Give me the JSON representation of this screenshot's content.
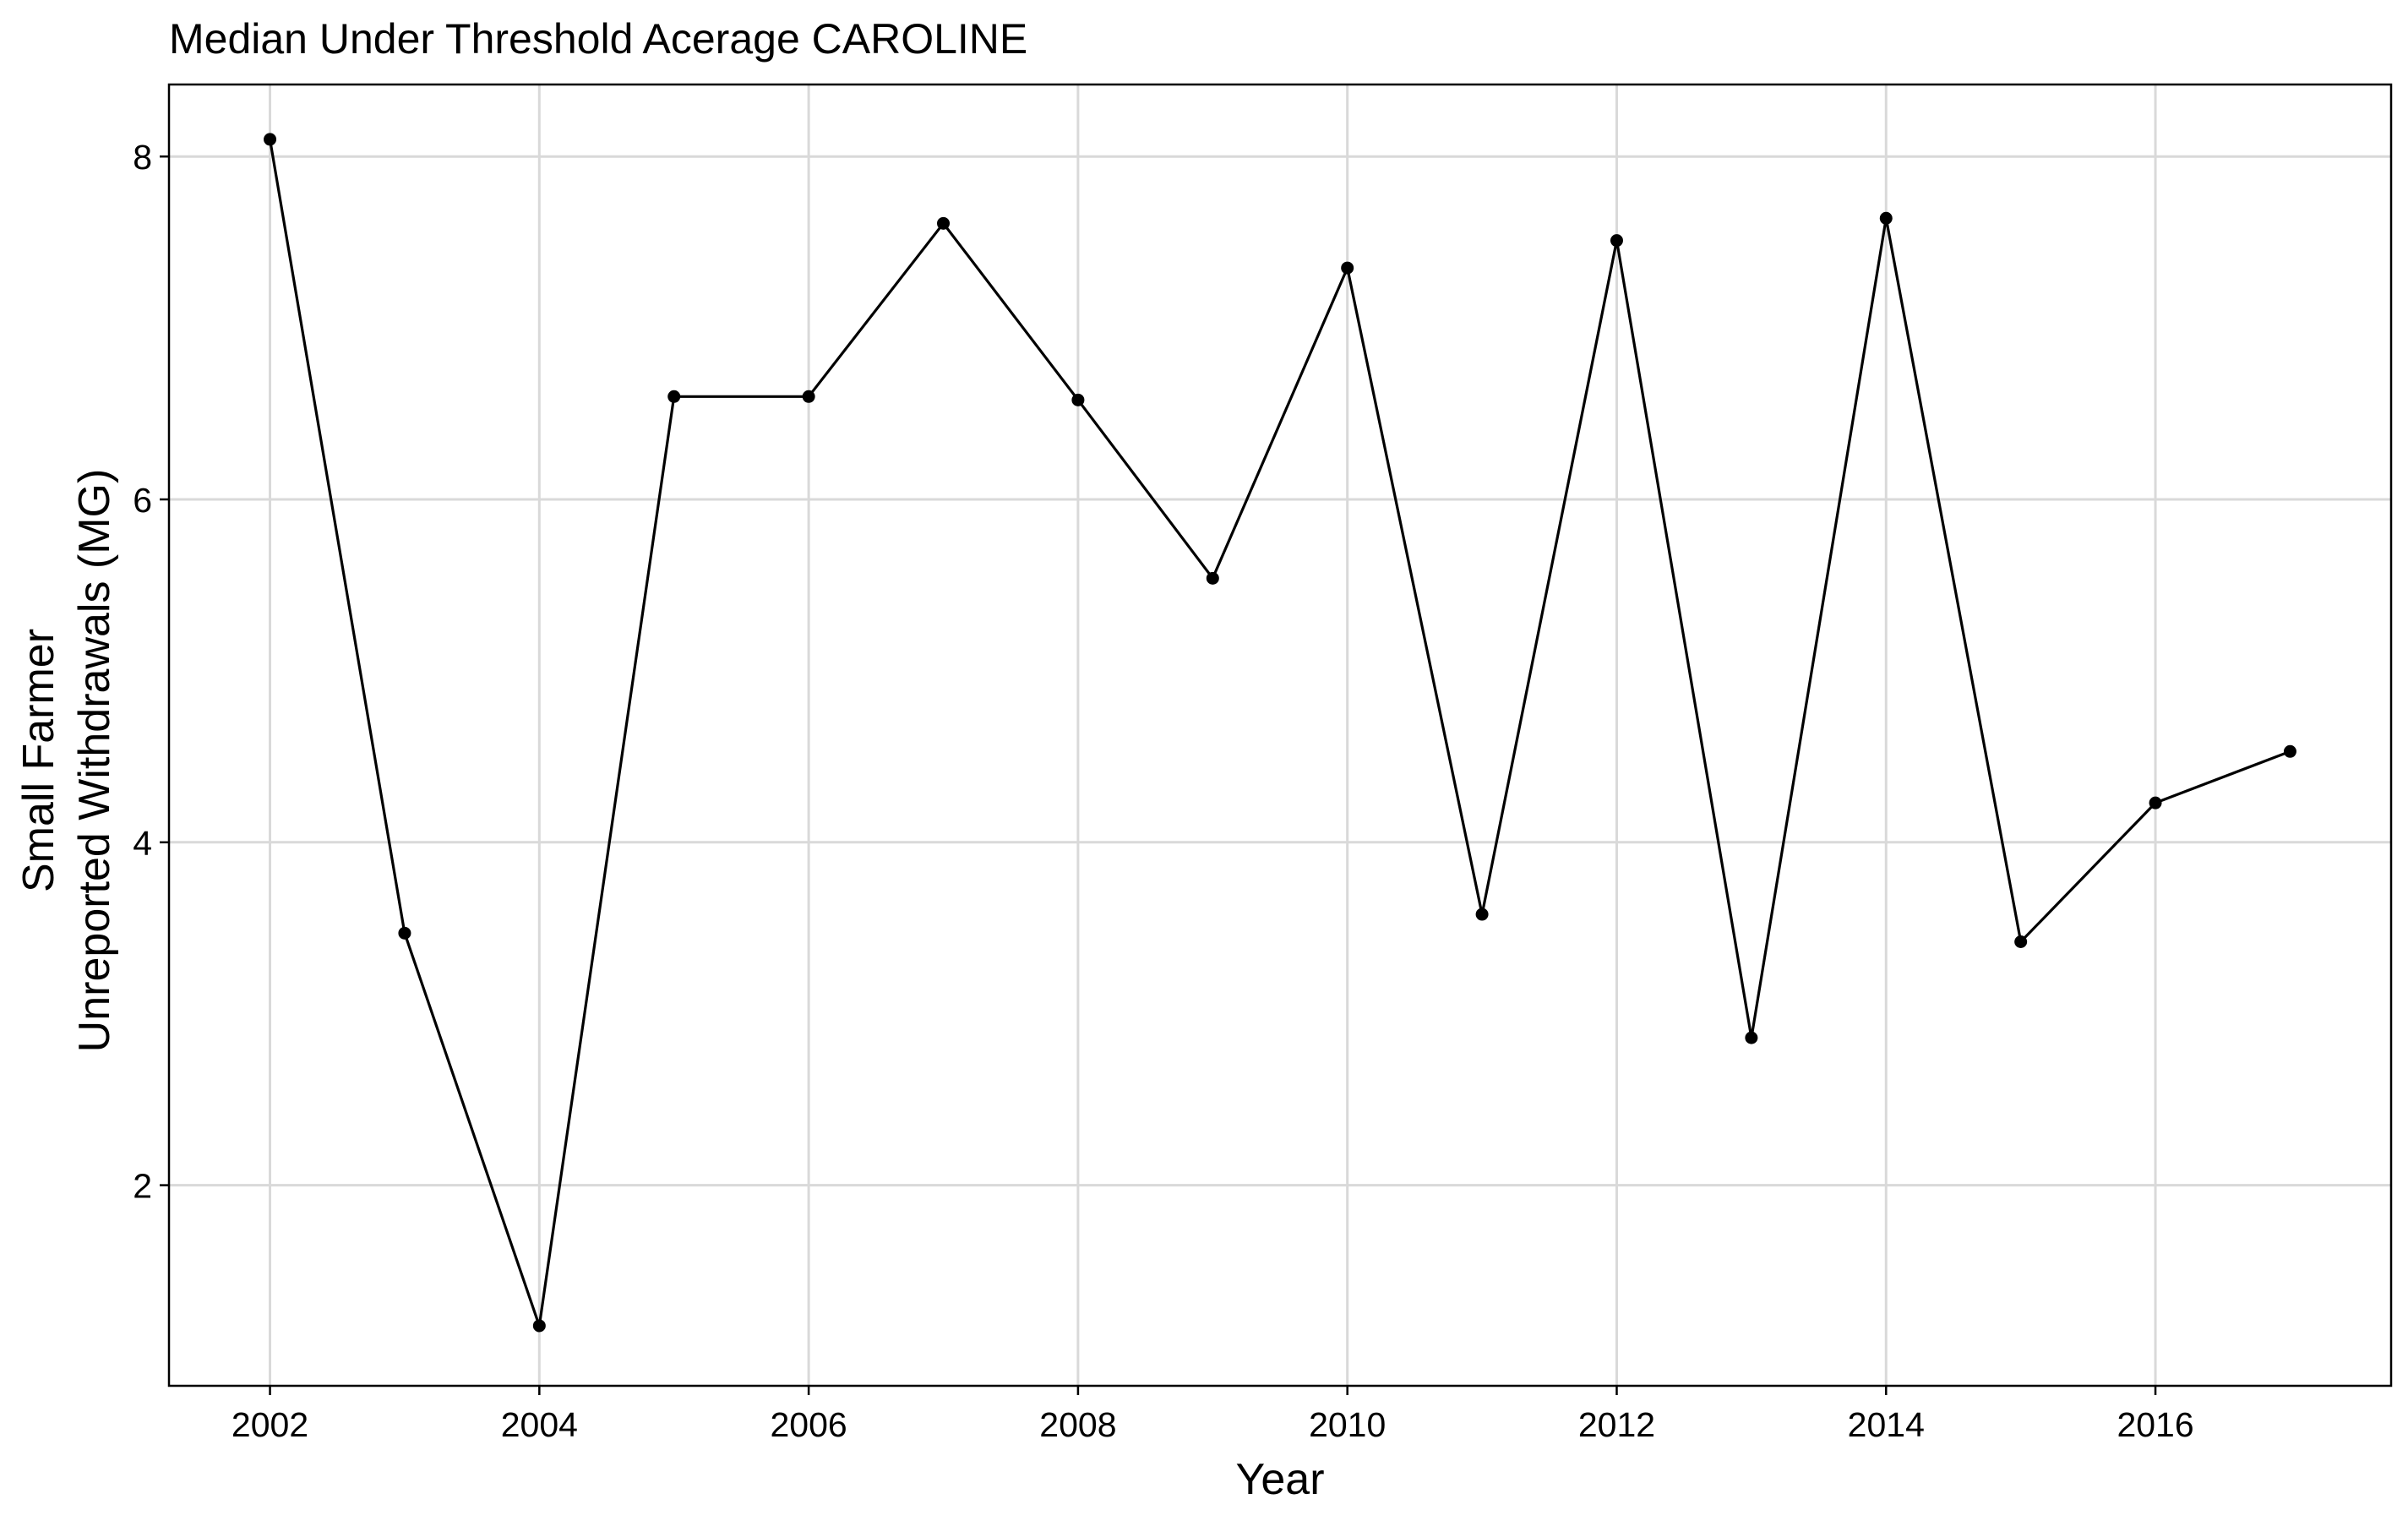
{
  "chart_data": {
    "type": "line",
    "title": "Median Under Threshold Acerage CAROLINE",
    "xlabel": "Year",
    "ylabel": [
      "Small Farmer",
      "Unreported Withdrawals (MG)"
    ],
    "x_ticks": [
      2002,
      2004,
      2006,
      2008,
      2010,
      2012,
      2014,
      2016
    ],
    "y_ticks": [
      2,
      4,
      6,
      8
    ],
    "xlim": [
      2001.25,
      2017.75
    ],
    "ylim": [
      0.83,
      8.42
    ],
    "grid": true,
    "legend": "none",
    "series": [
      {
        "x": [
          2002,
          2003,
          2004,
          2005,
          2006,
          2007,
          2008,
          2009,
          2010,
          2011,
          2012,
          2013,
          2014,
          2015,
          2016,
          2017
        ],
        "y": [
          8.1,
          3.47,
          1.18,
          6.6,
          6.6,
          7.61,
          6.58,
          5.54,
          7.35,
          3.58,
          7.51,
          2.86,
          7.64,
          3.42,
          4.23,
          4.53
        ],
        "color": "#000000"
      }
    ]
  }
}
